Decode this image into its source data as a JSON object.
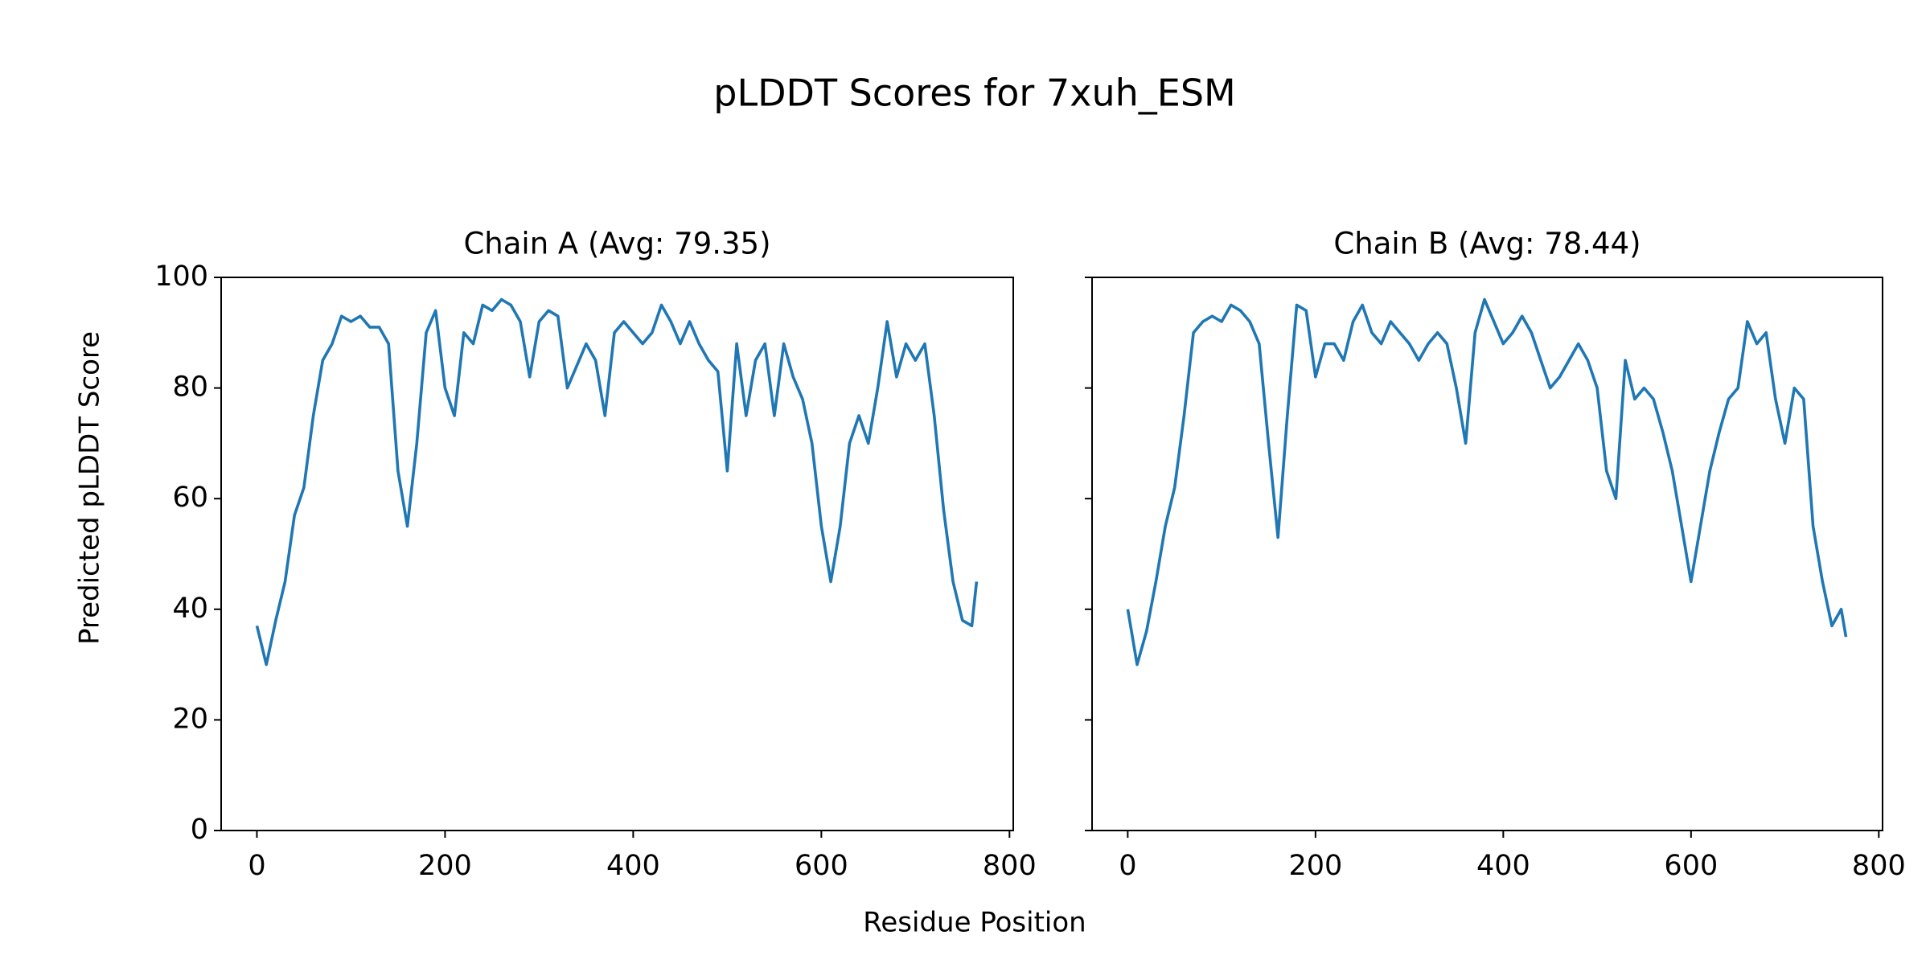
{
  "chart_data": {
    "type": "line",
    "title": "pLDDT Scores for 7xuh_ESM",
    "xlabel": "Residue Position",
    "ylabel": "Predicted pLDDT Score",
    "ylim": [
      0,
      100
    ],
    "yticks": [
      0,
      20,
      40,
      60,
      80,
      100
    ],
    "panels": [
      {
        "title": "Chain A (Avg: 79.35)",
        "color": "#1f77b4",
        "xlim": [
          -38,
          804
        ],
        "xticks": [
          0,
          200,
          400,
          600,
          800
        ],
        "x": [
          0,
          10,
          20,
          30,
          40,
          50,
          60,
          70,
          80,
          90,
          100,
          110,
          120,
          130,
          140,
          150,
          160,
          170,
          180,
          190,
          200,
          210,
          220,
          230,
          240,
          250,
          260,
          270,
          280,
          290,
          300,
          310,
          320,
          330,
          340,
          350,
          360,
          370,
          380,
          390,
          400,
          410,
          420,
          430,
          440,
          450,
          460,
          470,
          480,
          490,
          500,
          510,
          520,
          530,
          540,
          550,
          560,
          570,
          580,
          590,
          600,
          610,
          620,
          630,
          640,
          650,
          660,
          670,
          680,
          690,
          700,
          710,
          720,
          730,
          740,
          750,
          760,
          765
        ],
        "values": [
          37,
          30,
          38,
          45,
          57,
          62,
          75,
          85,
          88,
          93,
          92,
          93,
          91,
          91,
          88,
          65,
          55,
          70,
          90,
          94,
          80,
          75,
          90,
          88,
          95,
          94,
          96,
          95,
          92,
          82,
          92,
          94,
          93,
          80,
          84,
          88,
          85,
          75,
          90,
          92,
          90,
          88,
          90,
          95,
          92,
          88,
          92,
          88,
          85,
          83,
          65,
          88,
          75,
          85,
          88,
          75,
          88,
          82,
          78,
          70,
          55,
          45,
          55,
          70,
          75,
          70,
          80,
          92,
          82,
          88,
          85,
          88,
          75,
          58,
          45,
          38,
          37,
          45
        ]
      },
      {
        "title": "Chain B (Avg: 78.44)",
        "color": "#1f77b4",
        "xlim": [
          -38,
          804
        ],
        "xticks": [
          0,
          200,
          400,
          600,
          800
        ],
        "x": [
          0,
          10,
          20,
          30,
          40,
          50,
          60,
          70,
          80,
          90,
          100,
          110,
          120,
          130,
          140,
          150,
          160,
          170,
          180,
          190,
          200,
          210,
          220,
          230,
          240,
          250,
          260,
          270,
          280,
          290,
          300,
          310,
          320,
          330,
          340,
          350,
          360,
          370,
          380,
          390,
          400,
          410,
          420,
          430,
          440,
          450,
          460,
          470,
          480,
          490,
          500,
          510,
          520,
          530,
          540,
          550,
          560,
          570,
          580,
          590,
          600,
          610,
          620,
          630,
          640,
          650,
          660,
          670,
          680,
          690,
          700,
          710,
          720,
          730,
          740,
          750,
          760,
          765
        ],
        "values": [
          40,
          30,
          36,
          45,
          55,
          62,
          75,
          90,
          92,
          93,
          92,
          95,
          94,
          92,
          88,
          70,
          53,
          75,
          95,
          94,
          82,
          88,
          88,
          85,
          92,
          95,
          90,
          88,
          92,
          90,
          88,
          85,
          88,
          90,
          88,
          80,
          70,
          90,
          96,
          92,
          88,
          90,
          93,
          90,
          85,
          80,
          82,
          85,
          88,
          85,
          80,
          65,
          60,
          85,
          78,
          80,
          78,
          72,
          65,
          55,
          45,
          55,
          65,
          72,
          78,
          80,
          92,
          88,
          90,
          78,
          70,
          80,
          78,
          55,
          45,
          37,
          40,
          35
        ]
      }
    ]
  }
}
